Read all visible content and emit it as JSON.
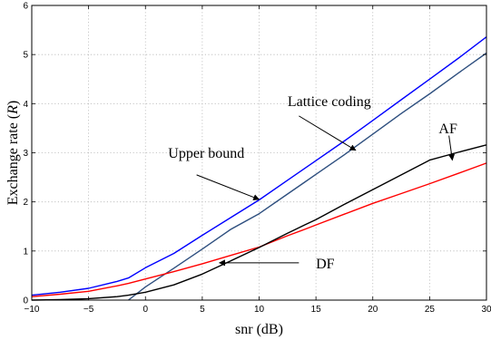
{
  "chart_data": {
    "type": "line",
    "xlabel": "snr (dB)",
    "ylabel_text": "Exchange rate (",
    "ylabel_var": "R",
    "ylabel_close": ")",
    "xlim": [
      -10,
      30
    ],
    "ylim": [
      0,
      6
    ],
    "xticks": [
      -10,
      -5,
      0,
      5,
      10,
      15,
      20,
      25,
      30
    ],
    "yticks": [
      0,
      1,
      2,
      3,
      4,
      5,
      6
    ],
    "grid": true,
    "x": [
      -10,
      -7.5,
      -5,
      -2.5,
      -1.5,
      0,
      2.5,
      5,
      7.5,
      10,
      12.5,
      14,
      15,
      17.5,
      20,
      22.5,
      25,
      27.5,
      30
    ],
    "series": [
      {
        "key": "upper",
        "color": "#0000ff",
        "values": [
          0.1,
          0.16,
          0.24,
          0.38,
          0.45,
          0.66,
          0.95,
          1.32,
          1.68,
          2.04,
          2.44,
          2.68,
          2.84,
          3.24,
          3.66,
          4.08,
          4.5,
          4.92,
          5.36
        ]
      },
      {
        "key": "lattice",
        "color": "#2e4f7f",
        "values": [
          null,
          null,
          null,
          null,
          0.0,
          0.27,
          0.65,
          1.04,
          1.44,
          1.76,
          2.16,
          2.4,
          2.56,
          2.96,
          3.38,
          3.8,
          4.2,
          4.62,
          5.03
        ]
      },
      {
        "key": "df",
        "color": "#ff0000",
        "values": [
          0.07,
          0.12,
          0.18,
          0.29,
          0.34,
          0.43,
          0.58,
          0.74,
          0.91,
          1.08,
          1.31,
          1.44,
          1.53,
          1.75,
          1.97,
          2.17,
          2.37,
          2.58,
          2.79
        ]
      },
      {
        "key": "af",
        "color": "#000000",
        "values": [
          0.0,
          0.01,
          0.03,
          0.07,
          0.1,
          0.16,
          0.31,
          0.53,
          0.8,
          1.07,
          1.36,
          1.53,
          1.64,
          1.95,
          2.25,
          2.55,
          2.85,
          3.01,
          3.16
        ]
      }
    ],
    "annotations": [
      {
        "key": "upper",
        "text": "Upper bound",
        "text_x": 2,
        "text_y": 2.9,
        "arrow_from": [
          4.5,
          2.55
        ],
        "arrow_to": [
          10,
          2.05
        ]
      },
      {
        "key": "lattice",
        "text": "Lattice coding",
        "text_x": 12.5,
        "text_y": 3.95,
        "arrow_from": [
          13.5,
          3.75
        ],
        "arrow_to": [
          18.5,
          3.05
        ]
      },
      {
        "key": "af",
        "text": "AF",
        "text_x": 25.8,
        "text_y": 3.4,
        "arrow_from": [
          26.7,
          3.35
        ],
        "arrow_to": [
          27,
          2.85
        ]
      },
      {
        "key": "df",
        "text": "DF",
        "text_x": 15,
        "text_y": 0.65,
        "arrow_from": [
          13.5,
          0.76
        ],
        "arrow_to": [
          6.5,
          0.76
        ]
      }
    ]
  }
}
